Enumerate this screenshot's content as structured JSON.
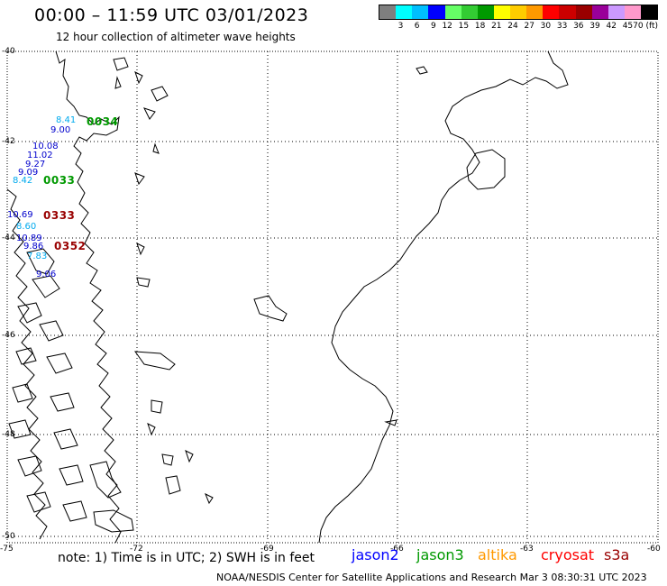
{
  "header": {
    "title": "00:00 – 11:59 UTC 03/01/2023",
    "subtitle": "12 hour collection of altimeter wave heights"
  },
  "legend": {
    "colors": [
      "#7f7f7f",
      "#00ffff",
      "#00bfff",
      "#0000ff",
      "#66ff66",
      "#33cc33",
      "#009900",
      "#ffff00",
      "#ffcc00",
      "#ff9900",
      "#ff0000",
      "#cc0000",
      "#990000",
      "#990099",
      "#cc99ff",
      "#ff99cc",
      "#000000"
    ],
    "labels": [
      "3",
      "6",
      "9",
      "12",
      "15",
      "18",
      "21",
      "24",
      "27",
      "30",
      "33",
      "36",
      "39",
      "42",
      "45",
      "70 (ft)"
    ]
  },
  "map": {
    "lat_labels": [
      "-40",
      "-42",
      "-44",
      "-46",
      "-48",
      "-50"
    ],
    "lon_labels": [
      "-75",
      "-72",
      "-69",
      "-66",
      "-63",
      "-60"
    ],
    "points": [
      {
        "text": "8.41",
        "color": "#00aaee"
      },
      {
        "text": "9.00",
        "color": "#0000cc"
      },
      {
        "text": "10.08",
        "color": "#0000cc"
      },
      {
        "text": "11.02",
        "color": "#0000cc"
      },
      {
        "text": "9.27",
        "color": "#0000cc"
      },
      {
        "text": "9.09",
        "color": "#0000cc"
      },
      {
        "text": "8.42",
        "color": "#00aaee"
      },
      {
        "text": "10.69",
        "color": "#0000cc"
      },
      {
        "text": "8.60",
        "color": "#00aaee"
      },
      {
        "text": "10.89",
        "color": "#0000cc"
      },
      {
        "text": "9.86",
        "color": "#0000cc"
      },
      {
        "text": "7.83",
        "color": "#00aaee"
      },
      {
        "text": "9.06",
        "color": "#0000cc"
      }
    ],
    "passes": [
      {
        "text": "0034",
        "color": "#009900"
      },
      {
        "text": "0033",
        "color": "#009900"
      },
      {
        "text": "0333",
        "color": "#990000"
      },
      {
        "text": "0352",
        "color": "#990000"
      }
    ]
  },
  "footer": {
    "note": "note:  1) Time is in UTC; 2) SWH is in feet",
    "satellites": [
      {
        "name": "jason2",
        "color": "#0000ff"
      },
      {
        "name": "jason3",
        "color": "#009900"
      },
      {
        "name": "altika",
        "color": "#ff9900"
      },
      {
        "name": "cryosat",
        "color": "#ff0000"
      },
      {
        "name": "s3a",
        "color": "#990000"
      }
    ],
    "credit": "NOAA/NESDIS Center for Satellite Applications and Research    Mar  3 08:30:31 UTC 2023"
  }
}
